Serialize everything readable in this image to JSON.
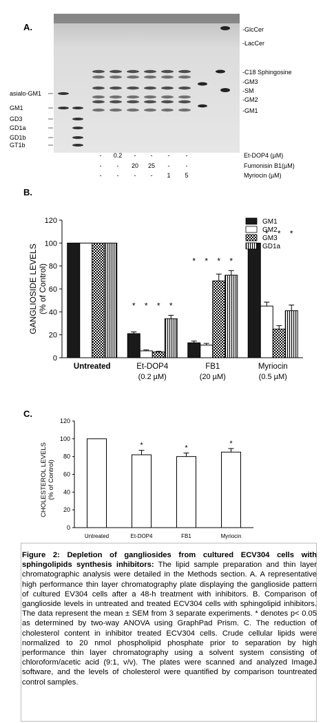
{
  "panel_a": {
    "letter": "A.",
    "left_labels": [
      "asialo-GM1",
      "GM1",
      "GD3",
      "GD1a",
      "GD1b",
      "GT1b"
    ],
    "right_labels": [
      "-GlcCer",
      "-LacCer",
      "-C18 Sphingosine",
      "-GM3",
      "-SM",
      "-GM2",
      "-GM1"
    ],
    "treatment_rows": [
      {
        "label": "Et-DOP4 (µM)",
        "cells": [
          "-",
          "0.2",
          "-",
          "-",
          "-",
          "-",
          "-"
        ]
      },
      {
        "label": "Fumonisin B1(µM)",
        "cells": [
          "-",
          "-",
          "20",
          "25",
          "-",
          "-",
          "-"
        ]
      },
      {
        "label": "Myriocin (µM)",
        "cells": [
          "-",
          "-",
          "-",
          "-",
          "1",
          "5",
          "-"
        ]
      }
    ]
  },
  "chart_data": [
    {
      "type": "bar",
      "panel": "B.",
      "ylabel": "GANGLIOSIDE LEVELS",
      "ylabel2": "(% of Control)",
      "ylim": [
        0,
        120
      ],
      "yticks": [
        0,
        20,
        40,
        60,
        80,
        100,
        120
      ],
      "categories": [
        "Untreated",
        "Et-DOP4",
        "FB1",
        "Myriocin"
      ],
      "category_sublabels": [
        "",
        "(0.2 µM)",
        "(20 µM)",
        "(0.5 µM)"
      ],
      "series": [
        {
          "name": "GM1",
          "values": [
            100,
            21,
            13,
            100
          ],
          "errors": [
            0,
            1.5,
            1.5,
            0
          ],
          "pattern": "solid"
        },
        {
          "name": "GM2",
          "values": [
            100,
            6,
            11,
            45
          ],
          "errors": [
            0,
            0.8,
            1.5,
            3.5
          ],
          "pattern": "open"
        },
        {
          "name": "GM3",
          "values": [
            100,
            5,
            67,
            25
          ],
          "errors": [
            0,
            0.6,
            6,
            3
          ],
          "pattern": "checker"
        },
        {
          "name": "GD1a",
          "values": [
            100,
            34,
            72,
            41
          ],
          "errors": [
            0,
            3,
            4,
            5
          ],
          "pattern": "vstripe"
        }
      ],
      "significance": [
        [
          false,
          false,
          false,
          false
        ],
        [
          true,
          true,
          true,
          true
        ],
        [
          true,
          true,
          true,
          true
        ],
        [
          false,
          true,
          true,
          true
        ]
      ],
      "legend": "top-right",
      "star": "*"
    },
    {
      "type": "bar",
      "panel": "C.",
      "ylabel": "CHOLESTEROL LEVELS",
      "ylabel2": "(% of Control)",
      "ylim": [
        0,
        120
      ],
      "yticks": [
        0,
        20,
        40,
        60,
        80,
        100,
        120
      ],
      "categories": [
        "Untreated",
        "Et-DOP4",
        "FB1",
        "Myriocin"
      ],
      "values": [
        100,
        82,
        80,
        85
      ],
      "errors": [
        0,
        5,
        4,
        4
      ],
      "significance": [
        false,
        true,
        true,
        true
      ],
      "star": "*"
    }
  ],
  "caption": {
    "title": "Figure 2: Depletion of gangliosides from cultured ECV304 cells with sphingolipids synthesis inhibitors:",
    "body": " The lipid sample preparation and thin layer chromatographic analysis were detailed in the Methods section. A. A representative high performance thin layer chromatography plate displaying the ganglioside pattern of cultured EV304 cells after a 48-h treatment with inhibitors. B. Comparison of ganglioside levels in untreated and treated ECV304 cells with sphingolipid inhibitors. The data represent the mean ± SEM from 3 separate experiments. * denotes p< 0.05 as determined by two-way ANOVA using GraphPad Prism. C. The reduction of cholesterol content in inhibitor treated ECV304 cells. Crude cellular lipids were normalized to 20 nmol phospholipid phosphate prior to separation by high performance thin layer chromatography using a solvent system consisting of chloroform/acetic acid (9:1, v/v). The plates were scanned and analyzed ImageJ software, and the levels of cholesterol were quantified by comparison tountreated control samples."
  }
}
